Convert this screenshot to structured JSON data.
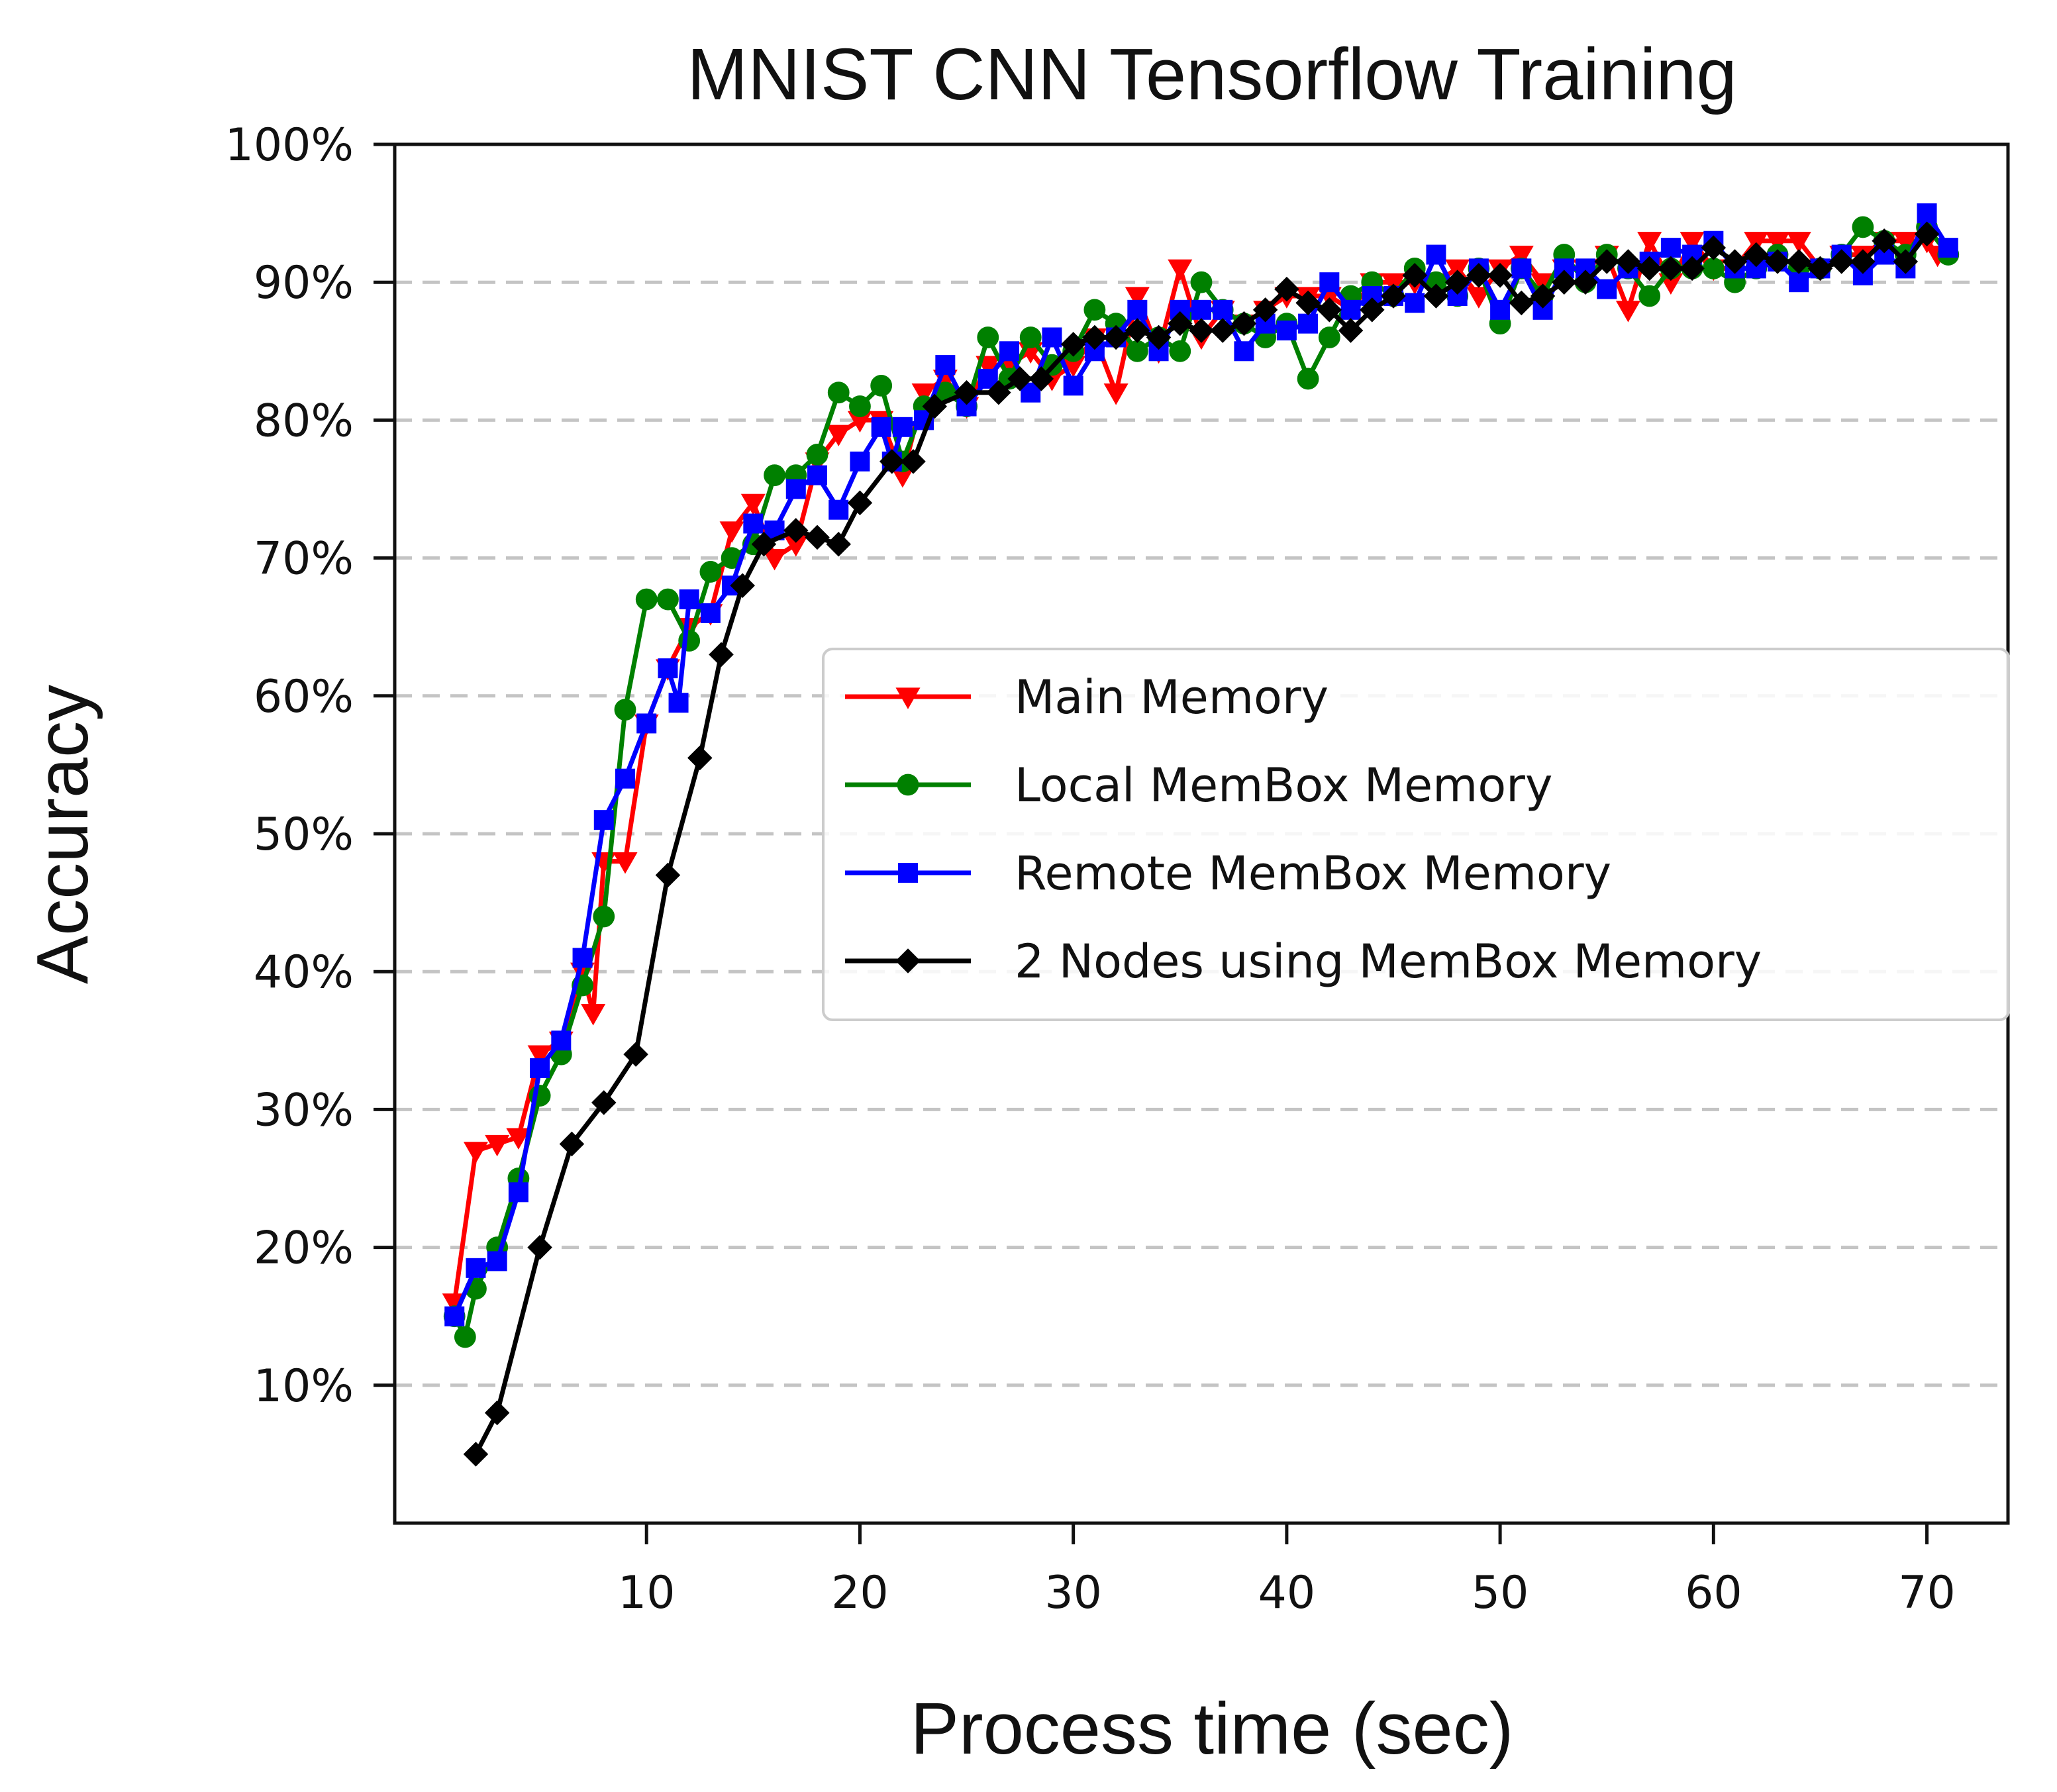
{
  "chart_data": {
    "type": "line",
    "title": "MNIST CNN Tensorflow Training",
    "xlabel": "Process time (sec)",
    "ylabel": "Accuracy",
    "xlim": [
      -1.8,
      73.8
    ],
    "ylim": [
      0,
      100
    ],
    "xticks": [
      10,
      20,
      30,
      40,
      50,
      60,
      70
    ],
    "xtick_labels": [
      "10",
      "20",
      "30",
      "40",
      "50",
      "60",
      "70"
    ],
    "yticks": [
      10,
      20,
      30,
      40,
      50,
      60,
      70,
      80,
      90,
      100
    ],
    "ytick_labels": [
      "10%",
      "20%",
      "30%",
      "40%",
      "50%",
      "60%",
      "70%",
      "80%",
      "90%",
      "100%"
    ],
    "grid": "horizontal dashed",
    "legend_position": "center-right",
    "series": [
      {
        "name": "Main Memory",
        "color": "#ff0000",
        "marker": "triangle-down",
        "points": [
          [
            1,
            16
          ],
          [
            2,
            27
          ],
          [
            3,
            27.5
          ],
          [
            4,
            28
          ],
          [
            5,
            34
          ],
          [
            6,
            35
          ],
          [
            7,
            40
          ],
          [
            7.5,
            37
          ],
          [
            8,
            48
          ],
          [
            9,
            48
          ],
          [
            10,
            58
          ],
          [
            11,
            62
          ],
          [
            12,
            65
          ],
          [
            13,
            66
          ],
          [
            14,
            72
          ],
          [
            15,
            74
          ],
          [
            16,
            70
          ],
          [
            17,
            71
          ],
          [
            18,
            77
          ],
          [
            19,
            79
          ],
          [
            20,
            80
          ],
          [
            21,
            80
          ],
          [
            22,
            76
          ],
          [
            23,
            82
          ],
          [
            24,
            83
          ],
          [
            25,
            81
          ],
          [
            26,
            84
          ],
          [
            27,
            84
          ],
          [
            28,
            85
          ],
          [
            29,
            83
          ],
          [
            30,
            84
          ],
          [
            31,
            86
          ],
          [
            32,
            82
          ],
          [
            33,
            89
          ],
          [
            34,
            85
          ],
          [
            35,
            91
          ],
          [
            36,
            86
          ],
          [
            37,
            88
          ],
          [
            38,
            87
          ],
          [
            39,
            88
          ],
          [
            40,
            89
          ],
          [
            41,
            89
          ],
          [
            42,
            89
          ],
          [
            43,
            88
          ],
          [
            44,
            90
          ],
          [
            45,
            90
          ],
          [
            46,
            90
          ],
          [
            47,
            90
          ],
          [
            48,
            91
          ],
          [
            49,
            89
          ],
          [
            50,
            91
          ],
          [
            51,
            92
          ],
          [
            52,
            90
          ],
          [
            53,
            91
          ],
          [
            54,
            91
          ],
          [
            55,
            92
          ],
          [
            56,
            88
          ],
          [
            57,
            93
          ],
          [
            58,
            90
          ],
          [
            59,
            93
          ],
          [
            60,
            91
          ],
          [
            61,
            91
          ],
          [
            62,
            93
          ],
          [
            63,
            93
          ],
          [
            64,
            93
          ],
          [
            65,
            91
          ],
          [
            66,
            92
          ],
          [
            67,
            92
          ],
          [
            68,
            93
          ],
          [
            69,
            93
          ],
          [
            70,
            93
          ],
          [
            70.5,
            92
          ]
        ]
      },
      {
        "name": "Local MemBox Memory",
        "color": "#008000",
        "marker": "circle",
        "points": [
          [
            1,
            15
          ],
          [
            1.5,
            13.5
          ],
          [
            2,
            17
          ],
          [
            3,
            20
          ],
          [
            4,
            25
          ],
          [
            5,
            31
          ],
          [
            6,
            34
          ],
          [
            7,
            39
          ],
          [
            8,
            44
          ],
          [
            9,
            59
          ],
          [
            10,
            67
          ],
          [
            11,
            67
          ],
          [
            12,
            64
          ],
          [
            13,
            69
          ],
          [
            14,
            70
          ],
          [
            15,
            71
          ],
          [
            16,
            76
          ],
          [
            17,
            76
          ],
          [
            18,
            77.5
          ],
          [
            19,
            82
          ],
          [
            20,
            81
          ],
          [
            21,
            82.5
          ],
          [
            22,
            77
          ],
          [
            23,
            81
          ],
          [
            24,
            82
          ],
          [
            25,
            81
          ],
          [
            26,
            86
          ],
          [
            27,
            83
          ],
          [
            28,
            86
          ],
          [
            29,
            84
          ],
          [
            30,
            85
          ],
          [
            31,
            88
          ],
          [
            32,
            87
          ],
          [
            33,
            85
          ],
          [
            34,
            86
          ],
          [
            35,
            85
          ],
          [
            36,
            90
          ],
          [
            37,
            88
          ],
          [
            38,
            87
          ],
          [
            39,
            86
          ],
          [
            40,
            87
          ],
          [
            41,
            83
          ],
          [
            42,
            86
          ],
          [
            43,
            89
          ],
          [
            44,
            90
          ],
          [
            45,
            89
          ],
          [
            46,
            91
          ],
          [
            47,
            90
          ],
          [
            48,
            89
          ],
          [
            49,
            91
          ],
          [
            50,
            87
          ],
          [
            51,
            91
          ],
          [
            52,
            89
          ],
          [
            53,
            92
          ],
          [
            54,
            90
          ],
          [
            55,
            92
          ],
          [
            56,
            91
          ],
          [
            57,
            89
          ],
          [
            58,
            91
          ],
          [
            59,
            91
          ],
          [
            60,
            91
          ],
          [
            61,
            90
          ],
          [
            62,
            91
          ],
          [
            63,
            92
          ],
          [
            64,
            91
          ],
          [
            65,
            91
          ],
          [
            66,
            92
          ],
          [
            67,
            94
          ],
          [
            68,
            93
          ],
          [
            69,
            92
          ],
          [
            70,
            94
          ],
          [
            71,
            92
          ]
        ]
      },
      {
        "name": "Remote MemBox Memory",
        "color": "#0000ff",
        "marker": "square",
        "points": [
          [
            1,
            15
          ],
          [
            2,
            18.5
          ],
          [
            3,
            19
          ],
          [
            4,
            24
          ],
          [
            5,
            33
          ],
          [
            6,
            35
          ],
          [
            7,
            41
          ],
          [
            8,
            51
          ],
          [
            9,
            54
          ],
          [
            10,
            58
          ],
          [
            11,
            62
          ],
          [
            11.5,
            59.5
          ],
          [
            12,
            67
          ],
          [
            13,
            66
          ],
          [
            14,
            68
          ],
          [
            15,
            72.5
          ],
          [
            16,
            72
          ],
          [
            17,
            75
          ],
          [
            18,
            76
          ],
          [
            19,
            73.5
          ],
          [
            20,
            77
          ],
          [
            21,
            79.5
          ],
          [
            21.5,
            77
          ],
          [
            22,
            79.5
          ],
          [
            23,
            80
          ],
          [
            24,
            84
          ],
          [
            25,
            81
          ],
          [
            26,
            83
          ],
          [
            27,
            85
          ],
          [
            28,
            82
          ],
          [
            29,
            86
          ],
          [
            30,
            82.5
          ],
          [
            31,
            85
          ],
          [
            32,
            86
          ],
          [
            33,
            88
          ],
          [
            34,
            85
          ],
          [
            35,
            88
          ],
          [
            36,
            88
          ],
          [
            37,
            88
          ],
          [
            38,
            85
          ],
          [
            39,
            87
          ],
          [
            40,
            86.5
          ],
          [
            41,
            87
          ],
          [
            42,
            90
          ],
          [
            43,
            88
          ],
          [
            44,
            89
          ],
          [
            45,
            89
          ],
          [
            46,
            88.5
          ],
          [
            47,
            92
          ],
          [
            48,
            89
          ],
          [
            49,
            91
          ],
          [
            50,
            88
          ],
          [
            51,
            91
          ],
          [
            52,
            88
          ],
          [
            53,
            91
          ],
          [
            54,
            91
          ],
          [
            55,
            89.5
          ],
          [
            56,
            91
          ],
          [
            57,
            91.5
          ],
          [
            58,
            92.5
          ],
          [
            59,
            92
          ],
          [
            60,
            93
          ],
          [
            61,
            91
          ],
          [
            62,
            91
          ],
          [
            63,
            91.5
          ],
          [
            64,
            90
          ],
          [
            65,
            91
          ],
          [
            66,
            92
          ],
          [
            67,
            90.5
          ],
          [
            68,
            92
          ],
          [
            69,
            91
          ],
          [
            70,
            95
          ],
          [
            71,
            92.5
          ]
        ]
      },
      {
        "name": "2 Nodes using MemBox Memory",
        "color": "#000000",
        "marker": "diamond",
        "points": [
          [
            2,
            5
          ],
          [
            3,
            8
          ],
          [
            5,
            20
          ],
          [
            6.5,
            27.5
          ],
          [
            8,
            30.5
          ],
          [
            9.5,
            34
          ],
          [
            11,
            47
          ],
          [
            12.5,
            55.5
          ],
          [
            13.5,
            63
          ],
          [
            14.5,
            68
          ],
          [
            15.5,
            71
          ],
          [
            17,
            72
          ],
          [
            18,
            71.5
          ],
          [
            19,
            71
          ],
          [
            20,
            74
          ],
          [
            21.5,
            77
          ],
          [
            22.5,
            77
          ],
          [
            23.5,
            81
          ],
          [
            25,
            82
          ],
          [
            26.5,
            82
          ],
          [
            27.5,
            83
          ],
          [
            28.5,
            83
          ],
          [
            30,
            85.5
          ],
          [
            31,
            86
          ],
          [
            32,
            86
          ],
          [
            33,
            86.5
          ],
          [
            34,
            86
          ],
          [
            35,
            87
          ],
          [
            36,
            86.5
          ],
          [
            37,
            86.5
          ],
          [
            38,
            87
          ],
          [
            39,
            88
          ],
          [
            40,
            89.5
          ],
          [
            41,
            88.5
          ],
          [
            42,
            88
          ],
          [
            43,
            86.5
          ],
          [
            44,
            88
          ],
          [
            45,
            89
          ],
          [
            46,
            90.5
          ],
          [
            47,
            89
          ],
          [
            48,
            90
          ],
          [
            49,
            90.5
          ],
          [
            50,
            90.5
          ],
          [
            51,
            88.5
          ],
          [
            52,
            89
          ],
          [
            53,
            90
          ],
          [
            54,
            90
          ],
          [
            55,
            91.5
          ],
          [
            56,
            91.5
          ],
          [
            57,
            91
          ],
          [
            58,
            91
          ],
          [
            59,
            91
          ],
          [
            60,
            92.5
          ],
          [
            61,
            91.5
          ],
          [
            62,
            92
          ],
          [
            63,
            91.5
          ],
          [
            64,
            91.5
          ],
          [
            65,
            91
          ],
          [
            66,
            91.5
          ],
          [
            67,
            91.5
          ],
          [
            68,
            93
          ],
          [
            69,
            91.5
          ],
          [
            70,
            93.5
          ]
        ]
      }
    ]
  }
}
